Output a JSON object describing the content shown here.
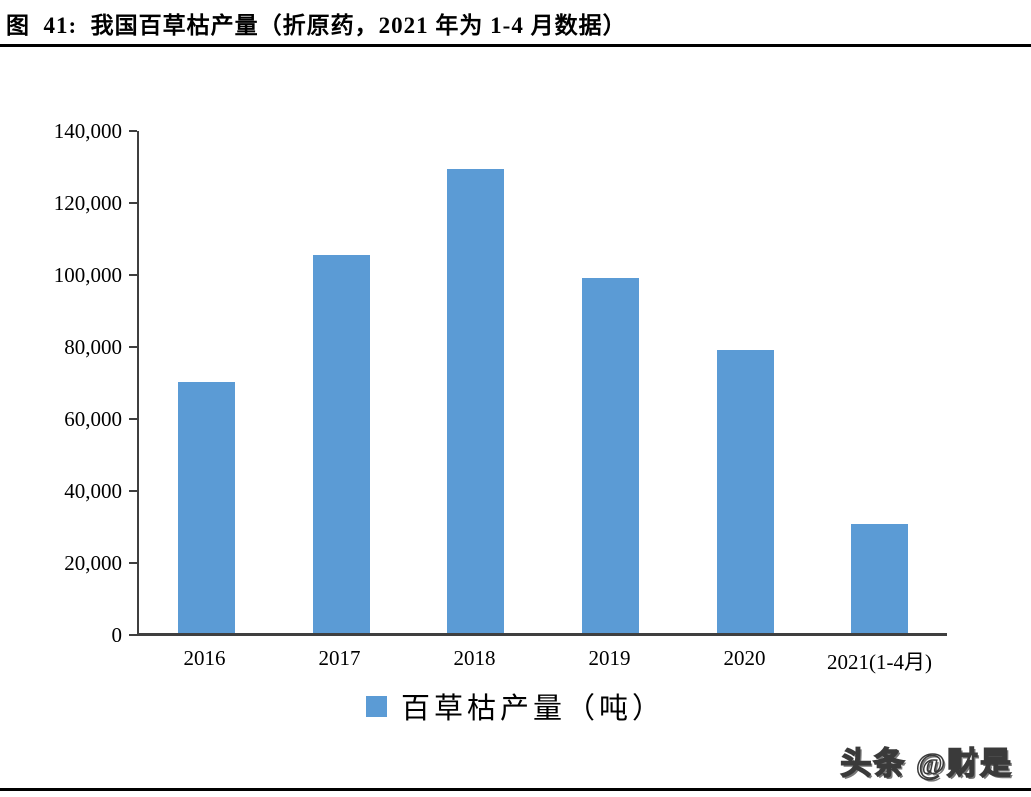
{
  "figure": {
    "title": "图  41:  我国百草枯产量（折原药，2021 年为 1-4 月数据）",
    "watermark": "头条 @财是"
  },
  "chart_data": {
    "type": "bar",
    "title": "我国百草枯产量（折原药，2021 年为 1-4 月数据）",
    "categories": [
      "2016",
      "2017",
      "2018",
      "2019",
      "2020",
      "2021(1-4月)"
    ],
    "values": [
      70000,
      105500,
      129500,
      99000,
      79000,
      30500
    ],
    "series_name": "百草枯产量（吨）",
    "legend": "百草枯产量（吨）",
    "legend_position": "bottom",
    "xlabel": "",
    "ylabel": "",
    "ylim": [
      0,
      140000
    ],
    "ytick_interval": 20000,
    "ytick_labels_top_to_bottom": [
      "140,000",
      "120,000",
      "100,000",
      "80,000",
      "60,000",
      "40,000",
      "20,000",
      "0"
    ],
    "grid": false,
    "bar_color": "#5B9BD5",
    "axis_color": "#3f3f3f",
    "background_color": "#ffffff"
  }
}
